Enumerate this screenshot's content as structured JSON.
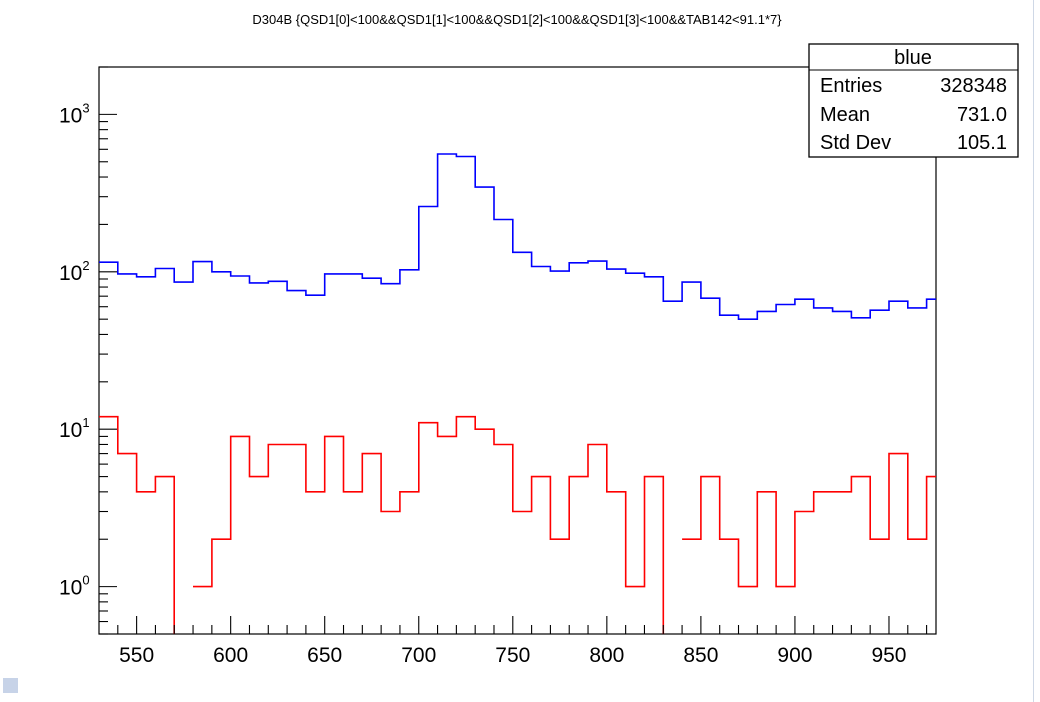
{
  "chart_data": {
    "type": "line",
    "title": "D304B {QSD1[0]<100&&QSD1[1]<100&&QSD1[2]<100&&QSD1[3]<100&&TAB142<91.1*7}",
    "xlim": [
      530,
      975
    ],
    "ylim": [
      0.5,
      2000
    ],
    "yscale": "log",
    "bin_width": 10,
    "x_ticks": [
      550,
      600,
      650,
      700,
      750,
      800,
      850,
      900,
      950
    ],
    "x_tick_labels": [
      "550",
      "600",
      "650",
      "700",
      "750",
      "800",
      "850",
      "900",
      "950"
    ],
    "y_ticks": [
      1,
      10,
      100,
      1000
    ],
    "y_tick_labels": [
      {
        "base": "10",
        "exp": "0"
      },
      {
        "base": "10",
        "exp": "1"
      },
      {
        "base": "10",
        "exp": "2"
      },
      {
        "base": "10",
        "exp": "3"
      }
    ],
    "series": [
      {
        "name": "blue",
        "color": "#0000ff",
        "values": [
          115,
          97,
          93,
          105,
          86,
          116,
          100,
          94,
          85,
          87,
          76,
          71,
          97,
          97,
          91,
          84,
          103,
          260,
          560,
          540,
          345,
          215,
          133,
          108,
          101,
          114,
          117,
          104,
          98,
          93,
          65,
          86,
          68,
          53,
          50,
          56,
          62,
          67,
          59,
          56,
          51,
          57,
          65,
          59,
          67
        ]
      },
      {
        "name": "",
        "color": "#ff0000",
        "values": [
          12,
          7,
          4,
          5,
          0,
          1,
          2,
          9,
          5,
          8,
          8,
          4,
          9,
          4,
          7,
          3,
          4,
          11,
          9,
          12,
          10,
          8,
          3,
          5,
          2,
          5,
          8,
          4,
          1,
          5,
          0,
          2,
          5,
          2,
          1,
          4,
          1,
          3,
          4,
          4,
          5,
          2,
          7,
          2,
          5
        ]
      }
    ]
  },
  "stats_box": {
    "title": "blue",
    "rows": [
      {
        "label": "Entries",
        "value": "328348"
      },
      {
        "label": "Mean",
        "value": "731.0"
      },
      {
        "label": "Std Dev",
        "value": "105.1"
      }
    ]
  }
}
